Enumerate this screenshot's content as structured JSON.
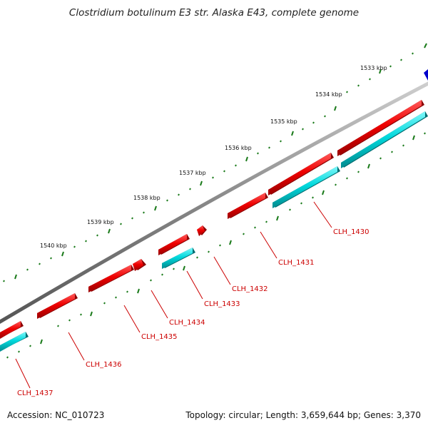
{
  "title": "Clostridium botulinum E3 str. Alaska E43, complete genome",
  "footer": {
    "accession": "Accession: NC_010723",
    "summary": "Topology: circular; Length: 3,659,644 bp; Genes: 3,370"
  },
  "colors": {
    "forward_gene": "#ee0000",
    "reverse_gene": "#00d8dc",
    "label": "#cc0000",
    "tick": "#1a7a1a",
    "backbone": "#888888",
    "other_feature": "#0000cc"
  },
  "scale_labels": [
    "1533 kbp",
    "1534 kbp",
    "1535 kbp",
    "1536 kbp",
    "1537 kbp",
    "1538 kbp",
    "1539 kbp",
    "1540 kbp"
  ],
  "gene_labels": [
    "CLH_1430",
    "CLH_1431",
    "CLH_1432",
    "CLH_1433",
    "CLH_1434",
    "CLH_1435",
    "CLH_1436",
    "CLH_1437"
  ]
}
